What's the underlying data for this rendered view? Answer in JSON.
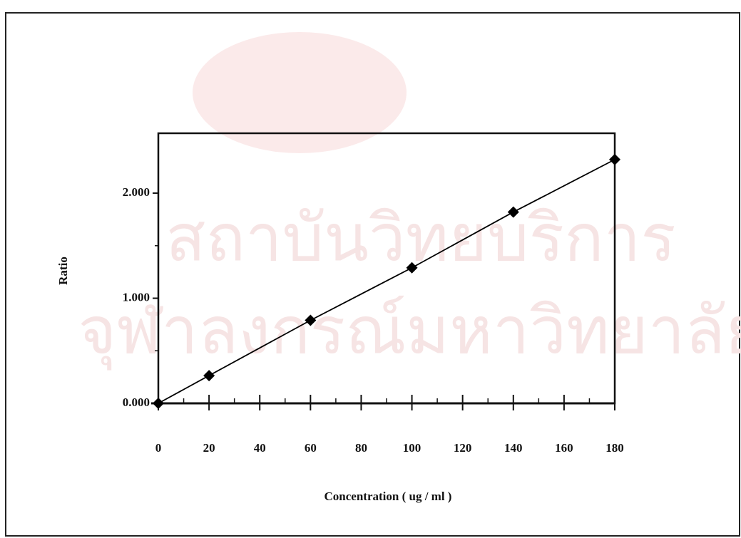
{
  "chart_data": {
    "type": "line",
    "x_label": "Concentration ( ug / ml )",
    "y_label": "Ratio",
    "watermark": [
      "สถาบันวิทยบริการ",
      "จุฬาลงกรณ์มหาวิทยาลัย"
    ],
    "x": [
      0,
      20,
      60,
      100,
      140,
      180
    ],
    "series": [
      {
        "color": "#000000",
        "values": [
          0,
          0.264,
          0.79,
          1.29,
          1.82,
          2.32
        ]
      }
    ],
    "xlim": [
      0,
      180
    ],
    "xticks": [
      0,
      20,
      40,
      60,
      80,
      100,
      120,
      140,
      160,
      180
    ],
    "ylim": [
      0,
      2.57
    ],
    "yticks": [
      {
        "value": 0,
        "label": "0.000"
      },
      {
        "value": 1,
        "label": "1.000"
      },
      {
        "value": 2,
        "label": "2.000"
      }
    ],
    "grid": false
  }
}
